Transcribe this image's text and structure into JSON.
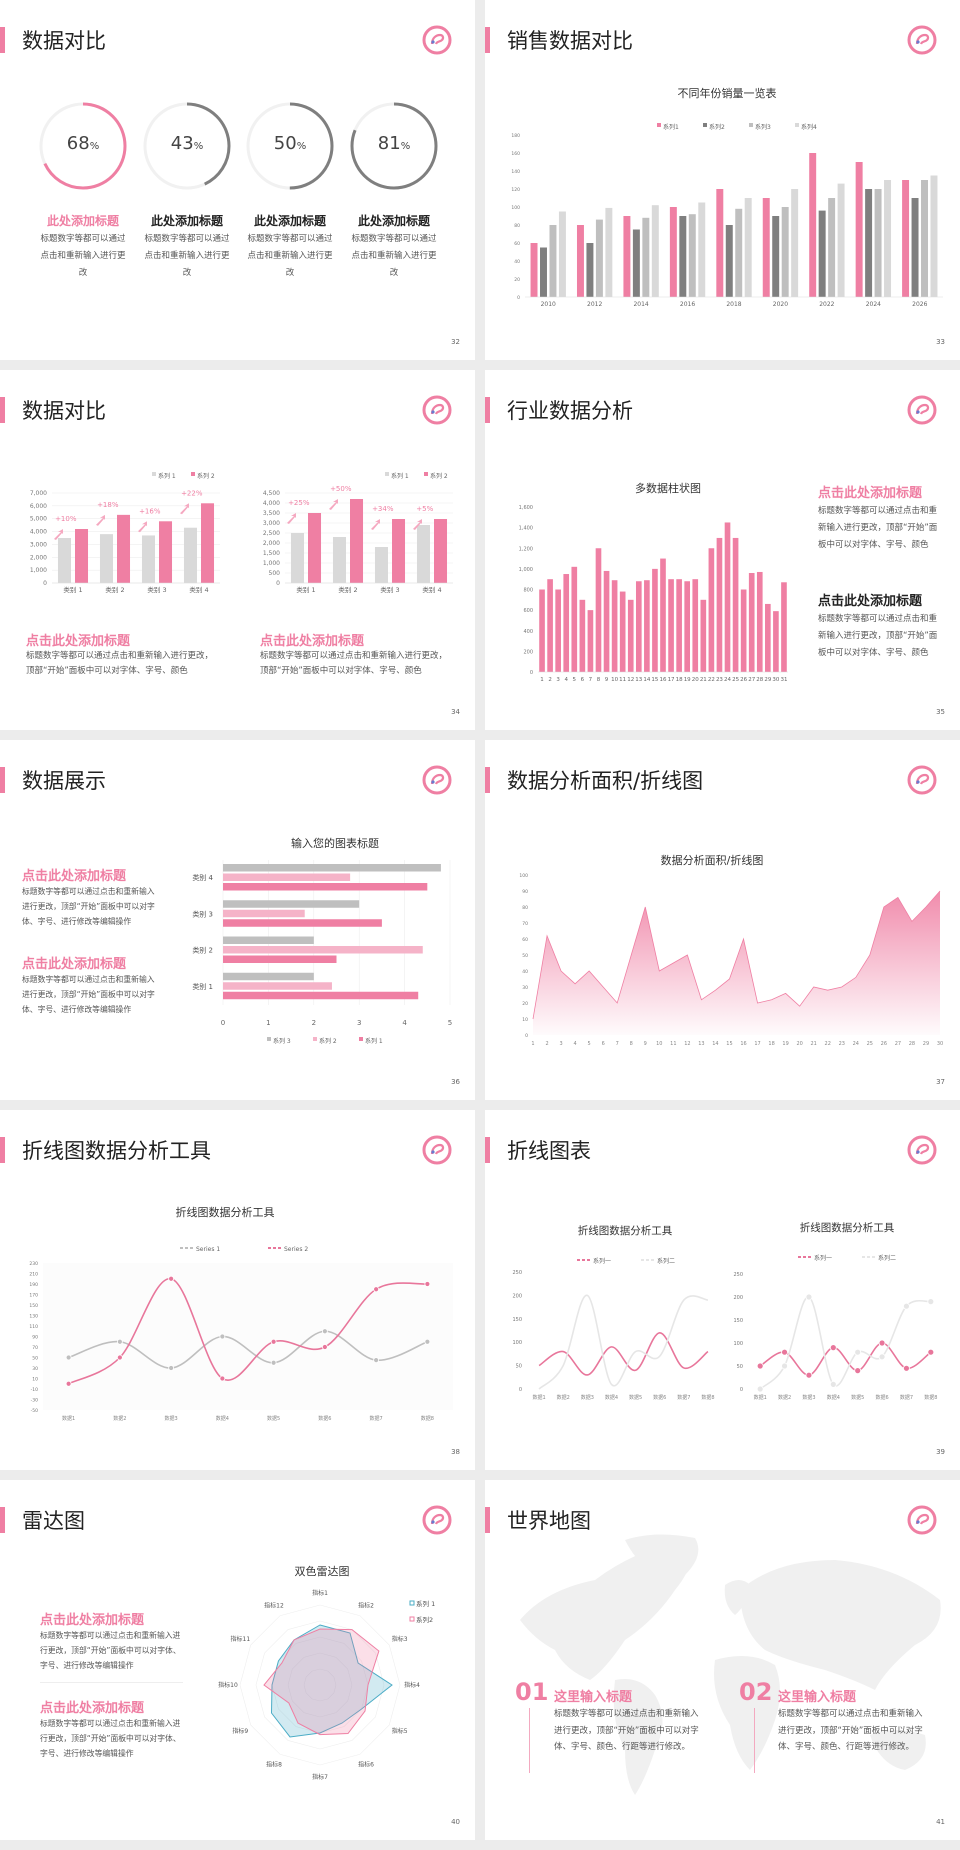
{
  "colors": {
    "accent": "#ef7fa3",
    "accent_light": "#f5b3c8",
    "dark_gray": "#7f7f7f",
    "gray": "#bfbfbf",
    "light_gray": "#d9d9d9",
    "teal": "#4bacc6"
  },
  "slides": [
    {
      "title": "数据对比",
      "page": "32",
      "items": [
        {
          "value": 68,
          "number": "68",
          "unit": "%",
          "heading": "此处添加标题",
          "desc": "标题数字等都可以通过点击和重新输入进行更改",
          "color": "#ef7fa3"
        },
        {
          "value": 43,
          "number": "43",
          "unit": "%",
          "heading": "此处添加标题",
          "desc": "标题数字等都可以通过点击和重新输入进行更改",
          "color": "#7f7f7f"
        },
        {
          "value": 50,
          "number": "50",
          "unit": "%",
          "heading": "此处添加标题",
          "desc": "标题数字等都可以通过点击和重新输入进行更改",
          "color": "#7f7f7f"
        },
        {
          "value": 81,
          "number": "81",
          "unit": "%",
          "heading": "此处添加标题",
          "desc": "标题数字等都可以通过点击和重新输入进行更改",
          "color": "#7f7f7f"
        }
      ]
    },
    {
      "title": "销售数据对比",
      "page": "33"
    },
    {
      "title": "数据对比",
      "page": "34",
      "blocks": [
        {
          "heading": "点击此处添加标题",
          "desc": "标题数字等都可以通过点击和重新输入进行更改，顶部“开始”面板中可以对字体、字号、颜色"
        },
        {
          "heading": "点击此处添加标题",
          "desc": "标题数字等都可以通过点击和重新输入进行更改，顶部“开始”面板中可以对字体、字号、颜色"
        }
      ]
    },
    {
      "title": "行业数据分析",
      "page": "35",
      "blocks": [
        {
          "heading": "点击此处添加标题",
          "desc": "标题数字等都可以通过点击和重新输入进行更改，顶部“开始”面板中可以对字体、字号、颜色"
        },
        {
          "heading": "点击此处添加标题",
          "desc": "标题数字等都可以通过点击和重新输入进行更改，顶部“开始”面板中可以对字体、字号、颜色"
        }
      ]
    },
    {
      "title": "数据展示",
      "page": "36",
      "blocks": [
        {
          "heading": "点击此处添加标题",
          "desc": "标题数字等都可以通过点击和重新输入进行更改，顶部“开始”面板中可以对字体、字号、进行修改等编辑操作"
        },
        {
          "heading": "点击此处添加标题",
          "desc": "标题数字等都可以通过点击和重新输入进行更改，顶部“开始”面板中可以对字体、字号、进行修改等编辑操作"
        }
      ]
    },
    {
      "title": "数据分析面积/折线图",
      "page": "37"
    },
    {
      "title": "折线图数据分析工具",
      "page": "38"
    },
    {
      "title": "折线图表",
      "page": "39"
    },
    {
      "title": "雷达图",
      "page": "40",
      "blocks": [
        {
          "heading": "点击此处添加标题",
          "desc": "标题数字等都可以通过点击和重新输入进行更改，顶部“开始”面板中可以对字体、字号、进行修改等编辑操作"
        },
        {
          "heading": "点击此处添加标题",
          "desc": "标题数字等都可以通过点击和重新输入进行更改，顶部“开始”面板中可以对字体、字号、进行修改等编辑操作"
        }
      ]
    },
    {
      "title": "世界地图",
      "page": "41",
      "blocks": [
        {
          "number": "01",
          "heading": "这里输入标题",
          "desc": "标题数字等都可以通过点击和重新输入进行更改，顶部“开始”面板中可以对字体、字号、颜色、行距等进行修改。"
        },
        {
          "number": "02",
          "heading": "这里输入标题",
          "desc": "标题数字等都可以通过点击和重新输入进行更改，顶部“开始”面板中可以对字体、字号、颜色、行距等进行修改。"
        }
      ]
    }
  ],
  "chart_data": [
    {
      "type": "bar",
      "title": "不同年份销量一览表",
      "categories": [
        "2010",
        "2012",
        "2014",
        "2016",
        "2018",
        "2020",
        "2022",
        "2024",
        "2026"
      ],
      "series": [
        {
          "name": "系列1",
          "color": "#ef7fa3",
          "values": [
            60,
            80,
            90,
            100,
            120,
            110,
            160,
            150,
            130
          ]
        },
        {
          "name": "系列2",
          "color": "#7f7f7f",
          "values": [
            55,
            60,
            75,
            90,
            80,
            90,
            96,
            120,
            110
          ]
        },
        {
          "name": "系列3",
          "color": "#bfbfbf",
          "values": [
            80,
            86,
            88,
            92,
            98,
            100,
            110,
            120,
            130
          ]
        },
        {
          "name": "系列4",
          "color": "#d9d9d9",
          "values": [
            95,
            99,
            102,
            105,
            110,
            120,
            126,
            130,
            135
          ]
        }
      ],
      "ylim": [
        0,
        180
      ],
      "yticks": [
        "0",
        "20",
        "40",
        "60",
        "80",
        "100",
        "120",
        "140",
        "160",
        "180"
      ],
      "grid": false,
      "legend": "top"
    },
    {
      "type": "bar",
      "title": "",
      "categories": [
        "类别 1",
        "类别 2",
        "类别 3",
        "类别 4"
      ],
      "series": [
        {
          "name": "系列 1",
          "color": "#d9d9d9",
          "values": [
            3500,
            3800,
            3700,
            4300
          ]
        },
        {
          "name": "系列 2",
          "color": "#ef7fa3",
          "values": [
            4200,
            5300,
            4800,
            6200
          ]
        }
      ],
      "annotations": [
        "+10%",
        "+18%",
        "+16%",
        "+22%"
      ],
      "ylim": [
        0,
        7000
      ],
      "yticks": [
        "0",
        "1,000",
        "2,000",
        "3,000",
        "4,000",
        "5,000",
        "6,000",
        "7,000"
      ],
      "grid": true,
      "legend": "top-right"
    },
    {
      "type": "bar",
      "title": "",
      "categories": [
        "类别 1",
        "类别 2",
        "类别 3",
        "类别 4"
      ],
      "series": [
        {
          "name": "系列 1",
          "color": "#d9d9d9",
          "values": [
            2500,
            2300,
            1800,
            2900
          ]
        },
        {
          "name": "系列 2",
          "color": "#ef7fa3",
          "values": [
            3500,
            4200,
            3200,
            3200
          ]
        }
      ],
      "annotations": [
        "+25%",
        "+50%",
        "+34%",
        "+5%"
      ],
      "ylim": [
        0,
        4500
      ],
      "yticks": [
        "0",
        "500",
        "1,000",
        "1,500",
        "2,000",
        "2,500",
        "3,000",
        "3,500",
        "4,000",
        "4,500"
      ],
      "grid": true,
      "legend": "top-right"
    },
    {
      "type": "bar",
      "title": "多数据柱状图",
      "categories": [
        "1",
        "2",
        "3",
        "4",
        "5",
        "6",
        "7",
        "8",
        "9",
        "10",
        "11",
        "12",
        "13",
        "14",
        "15",
        "16",
        "17",
        "18",
        "19",
        "20",
        "21",
        "22",
        "23",
        "24",
        "25",
        "26",
        "27",
        "28",
        "29",
        "30",
        "31"
      ],
      "series": [
        {
          "color": "#ef7fa3",
          "values": [
            800,
            900,
            800,
            950,
            1020,
            700,
            600,
            1200,
            980,
            890,
            780,
            700,
            880,
            890,
            1000,
            1100,
            900,
            900,
            880,
            900,
            700,
            1200,
            1300,
            1450,
            1300,
            800,
            960,
            970,
            660,
            590,
            870
          ]
        }
      ],
      "ylim": [
        0,
        1600
      ],
      "yticks": [
        "0",
        "200",
        "400",
        "600",
        "800",
        "1,000",
        "1,200",
        "1,400",
        "1,600"
      ],
      "grid": false,
      "legend": "none"
    },
    {
      "type": "bar",
      "orientation": "horizontal",
      "title": "输入您的图表标题",
      "categories": [
        "类别 1",
        "类别 2",
        "类别 3",
        "类别 4"
      ],
      "series": [
        {
          "name": "系列 1",
          "color": "#ef7fa3",
          "values": [
            4.3,
            2.5,
            3.5,
            4.5
          ]
        },
        {
          "name": "系列 2",
          "color": "#f5b3c8",
          "values": [
            2.4,
            4.4,
            1.8,
            2.8
          ]
        },
        {
          "name": "系列 3",
          "color": "#bfbfbf",
          "values": [
            2,
            2,
            3,
            4.8
          ]
        }
      ],
      "xlim": [
        0,
        5
      ],
      "xticks": [
        "0",
        "1",
        "2",
        "3",
        "4",
        "5"
      ],
      "grid": true,
      "legend": "bottom"
    },
    {
      "type": "area",
      "title": "数据分析面积/折线图",
      "x": [
        "1",
        "2",
        "3",
        "4",
        "5",
        "6",
        "7",
        "8",
        "9",
        "10",
        "11",
        "12",
        "13",
        "14",
        "15",
        "16",
        "17",
        "18",
        "19",
        "20",
        "21",
        "22",
        "23",
        "24",
        "25",
        "26",
        "27",
        "28",
        "29",
        "30"
      ],
      "series": [
        {
          "color": "#ef7fa3",
          "values": [
            10,
            62,
            40,
            32,
            40,
            30,
            20,
            50,
            80,
            40,
            45,
            50,
            22,
            28,
            35,
            60,
            20,
            22,
            26,
            18,
            30,
            28,
            30,
            36,
            50,
            80,
            86,
            71,
            80,
            90
          ]
        }
      ],
      "ylim": [
        0,
        100
      ],
      "yticks": [
        "0",
        "10",
        "20",
        "30",
        "40",
        "50",
        "60",
        "70",
        "80",
        "90",
        "100"
      ],
      "grid": false,
      "legend": "none"
    },
    {
      "type": "line",
      "title": "折线图数据分析工具",
      "x": [
        "数据1",
        "数据2",
        "数据3",
        "数据4",
        "数据5",
        "数据6",
        "数据7",
        "数据8"
      ],
      "series": [
        {
          "name": "Series 1",
          "color": "#bfbfbf",
          "values": [
            50,
            80,
            30,
            90,
            40,
            100,
            45,
            80
          ]
        },
        {
          "name": "Series 2",
          "color": "#e8769b",
          "values": [
            0,
            50,
            200,
            10,
            80,
            70,
            180,
            190
          ]
        }
      ],
      "smooth": true,
      "markers": true,
      "ylim": [
        -50,
        230
      ],
      "yticks": [
        "-50",
        "-30",
        "-10",
        "10",
        "30",
        "50",
        "70",
        "90",
        "110",
        "130",
        "150",
        "170",
        "190",
        "210",
        "230"
      ],
      "grid": false,
      "legend": "top"
    },
    {
      "type": "line",
      "title": "折线图数据分析工具",
      "x": [
        "数据1",
        "数据2",
        "数据3",
        "数据4",
        "数据5",
        "数据6",
        "数据7",
        "数据8"
      ],
      "series": [
        {
          "name": "系列一",
          "color": "#e8769b",
          "values": [
            50,
            80,
            30,
            90,
            40,
            120,
            45,
            80
          ]
        },
        {
          "name": "系列二",
          "color": "#e6e6e6",
          "values": [
            0,
            50,
            200,
            10,
            80,
            70,
            190,
            190
          ]
        }
      ],
      "smooth": true,
      "markers": false,
      "ylim": [
        0,
        250
      ],
      "yticks": [
        "0",
        "50",
        "100",
        "150",
        "200",
        "250"
      ],
      "grid": false,
      "legend": "top"
    },
    {
      "type": "line",
      "title": "折线图数据分析工具",
      "x": [
        "数据1",
        "数据2",
        "数据3",
        "数据4",
        "数据5",
        "数据6",
        "数据7",
        "数据8"
      ],
      "series": [
        {
          "name": "系列一",
          "color": "#e8769b",
          "values": [
            50,
            80,
            30,
            90,
            40,
            100,
            45,
            80
          ]
        },
        {
          "name": "系列二",
          "color": "#e6e6e6",
          "values": [
            0,
            50,
            200,
            10,
            80,
            70,
            180,
            190
          ]
        }
      ],
      "smooth": true,
      "markers": true,
      "ylim": [
        0,
        250
      ],
      "yticks": [
        "0",
        "50",
        "100",
        "150",
        "200",
        "250"
      ],
      "grid": false,
      "legend": "top"
    },
    {
      "type": "radar",
      "title": "双色雷达图",
      "axes": [
        "指标1",
        "指标2",
        "指标3",
        "指标4",
        "指标5",
        "指标6",
        "指标7",
        "指标8",
        "指标9",
        "指标10",
        "指标11",
        "指标12"
      ],
      "series": [
        {
          "name": "系列 1",
          "color": "#4bacc6",
          "values": [
            75,
            75,
            55,
            90,
            60,
            55,
            60,
            75,
            70,
            60,
            60,
            65
          ]
        },
        {
          "name": "系列2",
          "color": "#ef7fa3",
          "values": [
            70,
            80,
            85,
            60,
            65,
            70,
            62,
            55,
            45,
            70,
            55,
            65
          ]
        }
      ],
      "rlim": [
        0,
        100
      ],
      "legend": "top-right"
    }
  ]
}
